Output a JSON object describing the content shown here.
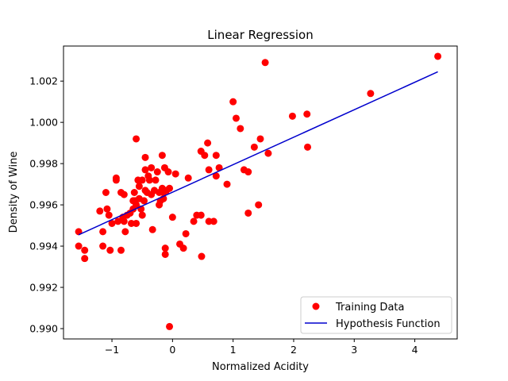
{
  "chart_data": {
    "type": "scatter",
    "title": "Linear Regression",
    "xlabel": "Normalized Acidity",
    "ylabel": "Density of Wine",
    "xlim": [
      -1.8,
      4.7
    ],
    "ylim": [
      0.9895,
      1.0037
    ],
    "xticks": [
      -1,
      0,
      1,
      2,
      3,
      4
    ],
    "xtick_labels": [
      "−1",
      "0",
      "1",
      "2",
      "3",
      "4"
    ],
    "yticks": [
      0.99,
      0.992,
      0.994,
      0.996,
      0.998,
      1.0,
      1.002
    ],
    "ytick_labels": [
      "0.990",
      "0.992",
      "0.994",
      "0.996",
      "0.998",
      "1.000",
      "1.002"
    ],
    "grid": false,
    "legend_position": "bottom-right",
    "series": [
      {
        "name": "Training Data",
        "kind": "scatter",
        "color": "#ff0000",
        "points": [
          [
            -1.55,
            0.9947
          ],
          [
            -1.55,
            0.994
          ],
          [
            -1.45,
            0.9938
          ],
          [
            -1.45,
            0.9934
          ],
          [
            -1.2,
            0.9957
          ],
          [
            -1.15,
            0.9947
          ],
          [
            -1.15,
            0.994
          ],
          [
            -1.1,
            0.9966
          ],
          [
            -1.08,
            0.9958
          ],
          [
            -1.05,
            0.9955
          ],
          [
            -1.03,
            0.9938
          ],
          [
            -1.0,
            0.9951
          ],
          [
            -0.93,
            0.9973
          ],
          [
            -0.93,
            0.9972
          ],
          [
            -0.9,
            0.9952
          ],
          [
            -0.85,
            0.9966
          ],
          [
            -0.85,
            0.9938
          ],
          [
            -0.82,
            0.9954
          ],
          [
            -0.8,
            0.9965
          ],
          [
            -0.8,
            0.9952
          ],
          [
            -0.78,
            0.9947
          ],
          [
            -0.75,
            0.9955
          ],
          [
            -0.7,
            0.9956
          ],
          [
            -0.68,
            0.9951
          ],
          [
            -0.65,
            0.9962
          ],
          [
            -0.65,
            0.9958
          ],
          [
            -0.63,
            0.9966
          ],
          [
            -0.62,
            0.9962
          ],
          [
            -0.6,
            0.9992
          ],
          [
            -0.6,
            0.996
          ],
          [
            -0.6,
            0.9951
          ],
          [
            -0.57,
            0.9972
          ],
          [
            -0.55,
            0.9969
          ],
          [
            -0.55,
            0.9963
          ],
          [
            -0.52,
            0.9958
          ],
          [
            -0.5,
            0.9972
          ],
          [
            -0.5,
            0.9955
          ],
          [
            -0.47,
            0.9962
          ],
          [
            -0.45,
            0.9977
          ],
          [
            -0.45,
            0.9967
          ],
          [
            -0.45,
            0.9983
          ],
          [
            -0.42,
            0.9966
          ],
          [
            -0.4,
            0.9974
          ],
          [
            -0.38,
            0.9972
          ],
          [
            -0.35,
            0.9978
          ],
          [
            -0.35,
            0.9965
          ],
          [
            -0.33,
            0.9948
          ],
          [
            -0.3,
            0.9967
          ],
          [
            -0.28,
            0.9972
          ],
          [
            -0.25,
            0.9976
          ],
          [
            -0.22,
            0.9966
          ],
          [
            -0.22,
            0.996
          ],
          [
            -0.2,
            0.9962
          ],
          [
            -0.17,
            0.9984
          ],
          [
            -0.17,
            0.9968
          ],
          [
            -0.15,
            0.9966
          ],
          [
            -0.15,
            0.9963
          ],
          [
            -0.13,
            0.9978
          ],
          [
            -0.12,
            0.9939
          ],
          [
            -0.12,
            0.9936
          ],
          [
            -0.1,
            0.9967
          ],
          [
            -0.07,
            0.9976
          ],
          [
            -0.05,
            0.9968
          ],
          [
            -0.05,
            0.9901
          ],
          [
            0.0,
            0.9954
          ],
          [
            0.05,
            0.9975
          ],
          [
            0.12,
            0.9941
          ],
          [
            0.18,
            0.9939
          ],
          [
            0.22,
            0.9946
          ],
          [
            0.26,
            0.9973
          ],
          [
            0.35,
            0.9952
          ],
          [
            0.4,
            0.9955
          ],
          [
            0.47,
            0.9955
          ],
          [
            0.47,
            0.9986
          ],
          [
            0.48,
            0.9935
          ],
          [
            0.53,
            0.9984
          ],
          [
            0.58,
            0.999
          ],
          [
            0.6,
            0.9977
          ],
          [
            0.6,
            0.9952
          ],
          [
            0.68,
            0.9952
          ],
          [
            0.72,
            0.9984
          ],
          [
            0.72,
            0.9974
          ],
          [
            0.77,
            0.9978
          ],
          [
            0.9,
            0.997
          ],
          [
            1.0,
            1.001
          ],
          [
            1.05,
            1.0002
          ],
          [
            1.12,
            0.9997
          ],
          [
            1.18,
            0.9977
          ],
          [
            1.25,
            0.9956
          ],
          [
            1.25,
            0.9976
          ],
          [
            1.35,
            0.9988
          ],
          [
            1.42,
            0.996
          ],
          [
            1.45,
            0.9992
          ],
          [
            1.53,
            1.0029
          ],
          [
            1.58,
            0.9985
          ],
          [
            1.98,
            1.0003
          ],
          [
            2.22,
            1.0004
          ],
          [
            2.23,
            0.9988
          ],
          [
            3.27,
            1.0014
          ],
          [
            4.38,
            1.0032
          ]
        ]
      },
      {
        "name": "Hypothesis Function",
        "kind": "line",
        "color": "#0000cd",
        "points": [
          [
            -1.55,
            0.99455
          ],
          [
            4.38,
            1.00245
          ]
        ]
      }
    ]
  }
}
